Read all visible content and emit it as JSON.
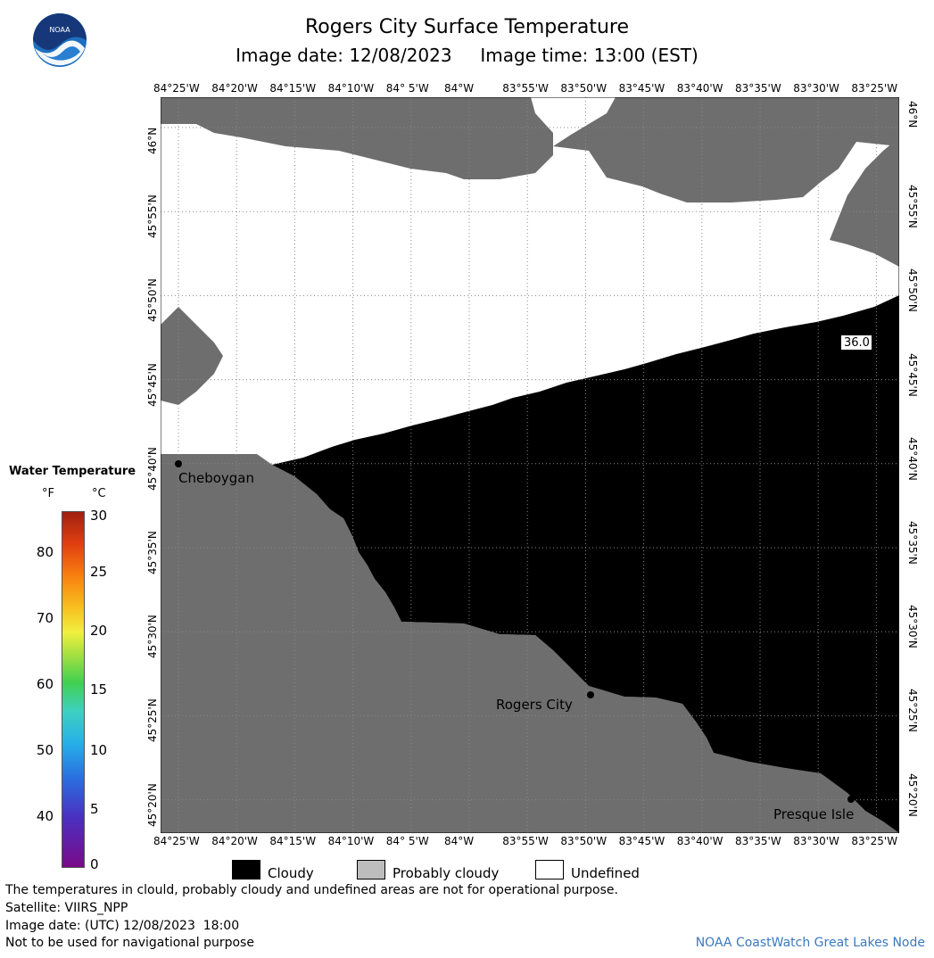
{
  "header": {
    "title": "Rogers City Surface Temperature",
    "image_date": "Image date: 12/08/2023",
    "image_time": "Image time: 13:00 (EST)"
  },
  "map": {
    "lon_ticks": [
      "84°25'W",
      "84°20'W",
      "84°15'W",
      "84°10'W",
      "84° 5'W",
      "84°W",
      "83°55'W",
      "83°50'W",
      "83°45'W",
      "83°40'W",
      "83°35'W",
      "83°30'W",
      "83°25'W"
    ],
    "lat_ticks": [
      "46°N",
      "45°55'N",
      "45°50'N",
      "45°45'N",
      "45°40'N",
      "45°35'N",
      "45°30'N",
      "45°25'N",
      "45°20'N"
    ],
    "temp_label": "36.0",
    "cities": [
      {
        "name": "Cheboygan"
      },
      {
        "name": "Rogers City"
      },
      {
        "name": "Presque Isle"
      }
    ],
    "colors": {
      "cloudy": "#000000",
      "probably_cloudy": "#6e6e6e",
      "undefined": "#ffffff"
    }
  },
  "scale": {
    "title": "Water Temperature",
    "unit_f": "°F",
    "unit_c": "°C",
    "fahrenheit": [
      "80",
      "70",
      "60",
      "50",
      "40"
    ],
    "celsius": [
      "30",
      "25",
      "20",
      "15",
      "10",
      "5",
      "0"
    ]
  },
  "legend": {
    "cloudy": "Cloudy",
    "probably_cloudy": "Probably cloudy",
    "undefined": "Undefined"
  },
  "footer": {
    "line1": "The temperatures in clould, probably cloudy and undefined areas are not for operational purpose.",
    "line2": "Satellite: VIIRS_NPP",
    "line3": "Image date: (UTC) 12/08/2023  18:00",
    "line4": "Not to be used for navigational purpose",
    "credit": "NOAA CoastWatch Great Lakes Node"
  }
}
